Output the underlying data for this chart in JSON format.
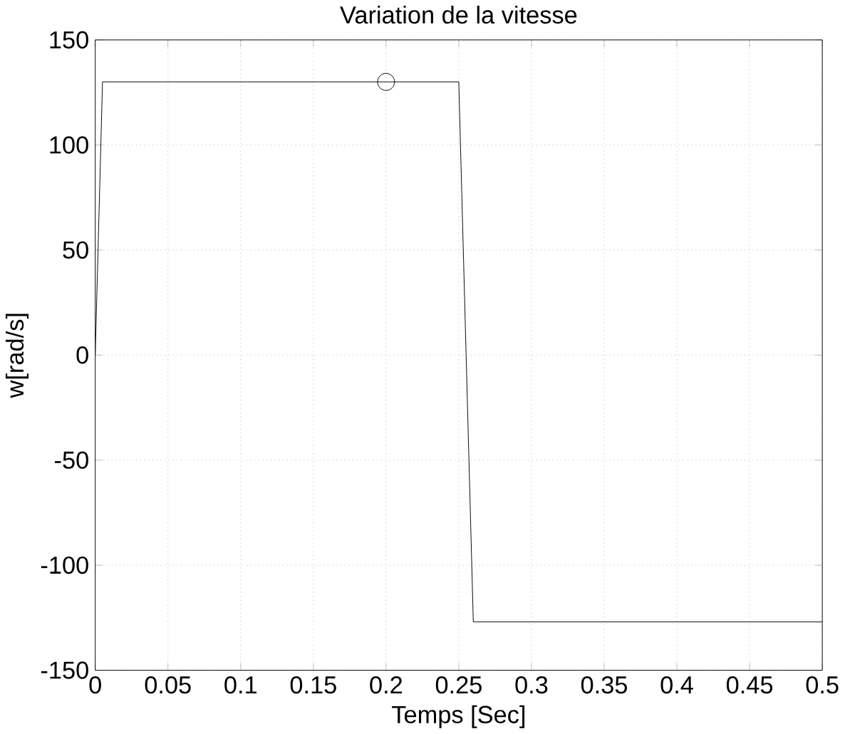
{
  "chart_data": {
    "type": "line",
    "title": "Variation de la vitesse",
    "xlabel": "Temps [Sec]",
    "ylabel": "w[rad/s]",
    "xlim": [
      0,
      0.5
    ],
    "ylim": [
      -150,
      150
    ],
    "xticks": [
      0,
      0.05,
      0.1,
      0.15,
      0.2,
      0.25,
      0.3,
      0.35,
      0.4,
      0.45,
      0.5
    ],
    "yticks": [
      -150,
      -100,
      -50,
      0,
      50,
      100,
      150
    ],
    "grid": true,
    "series": [
      {
        "color": "#000000",
        "x": [
          0,
          0.005,
          0.25,
          0.26,
          0.5
        ],
        "values": [
          0,
          130,
          130,
          -127,
          -127
        ]
      },
      {
        "type": "scatter",
        "color": "#000000",
        "marker": "circle",
        "x": [
          0.2
        ],
        "values": [
          130
        ]
      }
    ]
  }
}
